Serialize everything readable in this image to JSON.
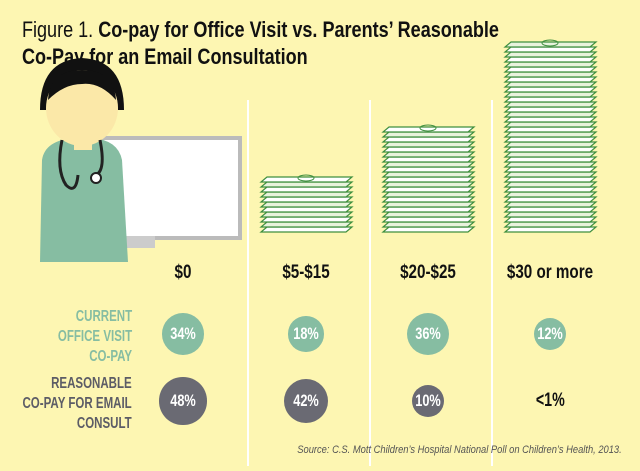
{
  "title": {
    "prefix": "Figure 1.",
    "line1": "Co-pay for Office Visit vs. Parents’ Reasonable",
    "line2": "Co-Pay for an Email Consultation"
  },
  "colors": {
    "background": "#fdf6b2",
    "current": "#86bda2",
    "reasonable": "#6a6a73",
    "money": "#3f8f3f"
  },
  "chart_data": {
    "type": "bubble-table",
    "categories": [
      "$0",
      "$5-$15",
      "$20-$25",
      "$30 or more"
    ],
    "series": [
      {
        "name": "CURRENT OFFICE VISIT CO-PAY",
        "values": [
          34,
          18,
          36,
          12
        ],
        "labels": [
          "34%",
          "18%",
          "36%",
          "12%"
        ]
      },
      {
        "name": "REASONABLE CO-PAY FOR EMAIL CONSULT",
        "values": [
          48,
          42,
          10,
          0.5
        ],
        "labels": [
          "48%",
          "42%",
          "10%",
          "<1%"
        ]
      }
    ]
  },
  "row_labels": {
    "current": [
      "CURRENT",
      "OFFICE VISIT",
      "CO-PAY"
    ],
    "reasonable": [
      "REASONABLE",
      "CO-PAY FOR EMAIL",
      "CONSULT"
    ]
  },
  "source": "Source: C.S. Mott Children’s Hospital National Poll on Children’s Health, 2013."
}
